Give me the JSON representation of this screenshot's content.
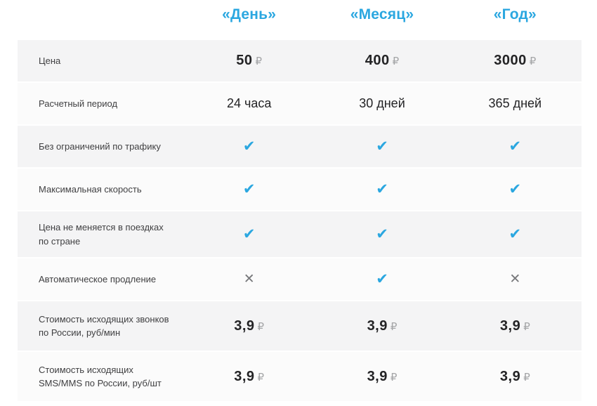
{
  "header": {
    "plans": [
      {
        "label": "«День»"
      },
      {
        "label": "«Месяц»"
      },
      {
        "label": "«Год»"
      }
    ]
  },
  "table": {
    "rows": [
      {
        "label": "Цена",
        "type": "price",
        "values": [
          "50",
          "400",
          "3000"
        ],
        "unit": "₽"
      },
      {
        "label": "Расчетный период",
        "type": "text",
        "values": [
          "24 часа",
          "30 дней",
          "365 дней"
        ]
      },
      {
        "label": "Без ограничений по трафику",
        "type": "mark",
        "values": [
          "check",
          "check",
          "check"
        ]
      },
      {
        "label": "Максимальная скорость",
        "type": "mark",
        "values": [
          "check",
          "check",
          "check"
        ]
      },
      {
        "label": "Цена не меняется в поездках по стране",
        "type": "mark",
        "values": [
          "check",
          "check",
          "check"
        ]
      },
      {
        "label": "Автоматическое продление",
        "type": "mark",
        "values": [
          "cross",
          "check",
          "cross"
        ]
      },
      {
        "label": "Стоимость исходящих звонков по России, руб/мин",
        "type": "price",
        "values": [
          "3,9",
          "3,9",
          "3,9"
        ],
        "unit": "₽"
      },
      {
        "label": "Стоимость исходящих SMS/MMS по России, руб/шт",
        "type": "price",
        "values": [
          "3,9",
          "3,9",
          "3,9"
        ],
        "unit": "₽"
      }
    ],
    "marks": {
      "check": "✔",
      "cross": "✕"
    }
  },
  "colors": {
    "accent_blue": "#2ba7e0",
    "cross_gray": "#77787b",
    "ruble_gray": "#a4a5a7",
    "row_shaded": "#f4f4f5",
    "row_plain": "#fbfbfb"
  }
}
